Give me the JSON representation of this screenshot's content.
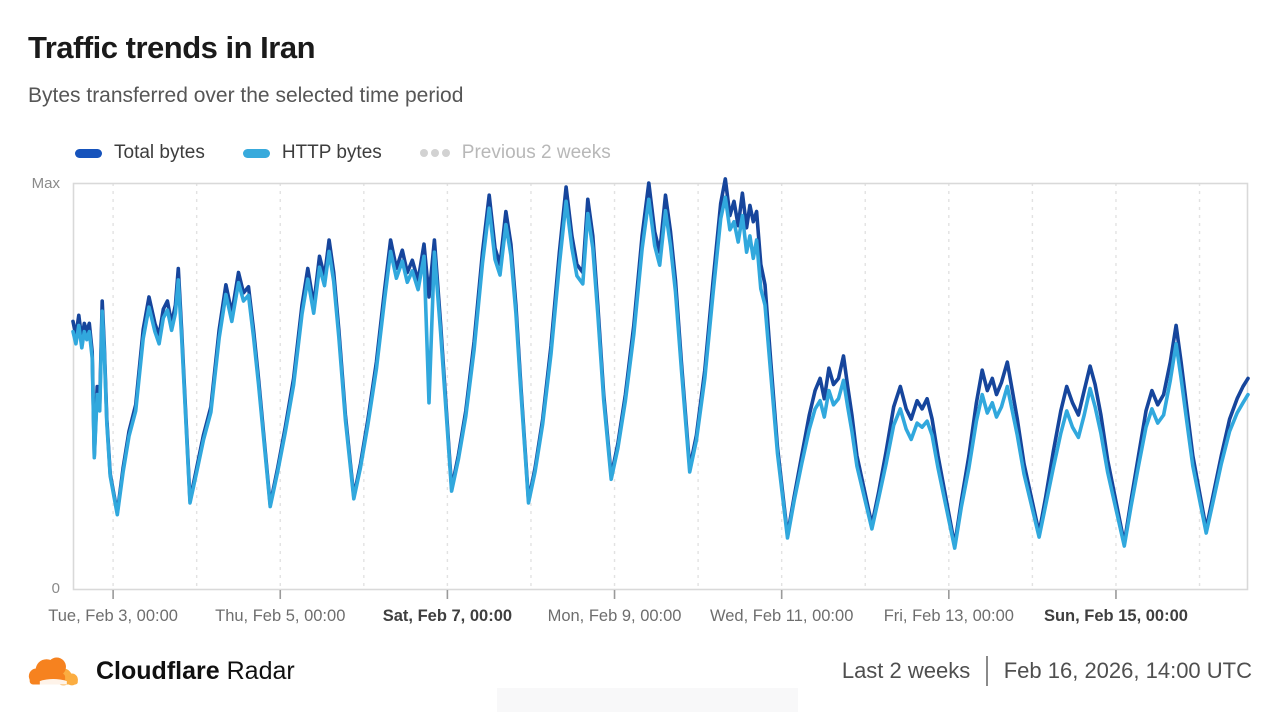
{
  "header": {
    "title": "Traffic trends in Iran",
    "subtitle": "Bytes transferred over the selected time period"
  },
  "legend": [
    {
      "label": "Total bytes",
      "color": "#1653bc",
      "style": "solid",
      "disabled": false
    },
    {
      "label": "HTTP bytes",
      "color": "#38aadc",
      "style": "solid",
      "disabled": false
    },
    {
      "label": "Previous 2 weeks",
      "color": "#d2d2d2",
      "style": "dotted",
      "disabled": true
    }
  ],
  "chart": {
    "y_max_label": "Max",
    "y_min_label": "0",
    "x_ticks": [
      {
        "label": "Tue, Feb 3, 00:00",
        "t": 1,
        "bold": false
      },
      {
        "label": "Thu, Feb 5, 00:00",
        "t": 3,
        "bold": false
      },
      {
        "label": "Sat, Feb 7, 00:00",
        "t": 5,
        "bold": true
      },
      {
        "label": "Mon, Feb 9, 00:00",
        "t": 7,
        "bold": false
      },
      {
        "label": "Wed, Feb 11, 00:00",
        "t": 9,
        "bold": false
      },
      {
        "label": "Fri, Feb 13, 00:00",
        "t": 11,
        "bold": false
      },
      {
        "label": "Sun, Feb 15, 00:00",
        "t": 13,
        "bold": true
      }
    ],
    "gridline_days": [
      1,
      2,
      3,
      4,
      5,
      6,
      7,
      8,
      9,
      10,
      11,
      12,
      13,
      14
    ],
    "border_color": "#d9d9d9",
    "gridline_color": "#e2e2e2",
    "tick_color": "#9a9a9a"
  },
  "footer": {
    "brand_bold": "Cloudflare",
    "brand_regular": "Radar",
    "range_label": "Last 2 weeks",
    "timestamp": "Feb 16, 2026, 14:00 UTC",
    "logo_orange": "#F6821F",
    "logo_light_orange": "#FBAD41"
  },
  "chart_data": {
    "type": "line",
    "title": "Traffic trends in Iran",
    "subtitle": "Bytes transferred over the selected time period",
    "x_unit": "days since Feb 2, 2026 00:00 UTC",
    "x_range": [
      0.52,
      14.58
    ],
    "ylim": [
      0,
      1
    ],
    "y_axis": {
      "min_label": "0",
      "max_label": "Max",
      "note": "values normalized to Max"
    },
    "grid": "vertical-daily-dashed",
    "legend_position": "top",
    "series": [
      {
        "name": "Total bytes",
        "color": "#16459c",
        "points_index": 1
      },
      {
        "name": "HTTP bytes",
        "color": "#31a8dd",
        "points_index": 2
      }
    ],
    "points": [
      [
        0.52,
        0.66,
        0.635
      ],
      [
        0.555,
        0.625,
        0.605
      ],
      [
        0.59,
        0.675,
        0.65
      ],
      [
        0.625,
        0.615,
        0.595
      ],
      [
        0.655,
        0.655,
        0.635
      ],
      [
        0.685,
        0.635,
        0.615
      ],
      [
        0.715,
        0.655,
        0.635
      ],
      [
        0.75,
        0.585,
        0.57
      ],
      [
        0.775,
        0.33,
        0.325
      ],
      [
        0.81,
        0.5,
        0.48
      ],
      [
        0.84,
        0.455,
        0.44
      ],
      [
        0.87,
        0.71,
        0.685
      ],
      [
        0.895,
        0.6,
        0.585
      ],
      [
        0.925,
        0.42,
        0.41
      ],
      [
        0.965,
        0.285,
        0.28
      ],
      [
        1.05,
        0.19,
        0.185
      ],
      [
        1.12,
        0.3,
        0.29
      ],
      [
        1.19,
        0.39,
        0.378
      ],
      [
        1.27,
        0.455,
        0.44
      ],
      [
        1.36,
        0.64,
        0.618
      ],
      [
        1.43,
        0.72,
        0.695
      ],
      [
        1.5,
        0.655,
        0.635
      ],
      [
        1.55,
        0.625,
        0.605
      ],
      [
        1.6,
        0.69,
        0.668
      ],
      [
        1.65,
        0.71,
        0.688
      ],
      [
        1.7,
        0.655,
        0.638
      ],
      [
        1.745,
        0.7,
        0.68
      ],
      [
        1.78,
        0.79,
        0.762
      ],
      [
        1.82,
        0.64,
        0.622
      ],
      [
        1.92,
        0.22,
        0.214
      ],
      [
        2.0,
        0.3,
        0.29
      ],
      [
        2.08,
        0.38,
        0.368
      ],
      [
        2.17,
        0.45,
        0.437
      ],
      [
        2.27,
        0.64,
        0.62
      ],
      [
        2.35,
        0.75,
        0.726
      ],
      [
        2.42,
        0.68,
        0.66
      ],
      [
        2.5,
        0.78,
        0.755
      ],
      [
        2.56,
        0.73,
        0.71
      ],
      [
        2.62,
        0.745,
        0.724
      ],
      [
        2.68,
        0.64,
        0.622
      ],
      [
        2.74,
        0.52,
        0.506
      ],
      [
        2.88,
        0.21,
        0.205
      ],
      [
        2.97,
        0.3,
        0.291
      ],
      [
        3.06,
        0.4,
        0.388
      ],
      [
        3.16,
        0.52,
        0.504
      ],
      [
        3.26,
        0.7,
        0.678
      ],
      [
        3.33,
        0.79,
        0.764
      ],
      [
        3.4,
        0.7,
        0.68
      ],
      [
        3.47,
        0.82,
        0.793
      ],
      [
        3.53,
        0.77,
        0.748
      ],
      [
        3.585,
        0.86,
        0.832
      ],
      [
        3.64,
        0.78,
        0.758
      ],
      [
        3.7,
        0.64,
        0.622
      ],
      [
        3.78,
        0.43,
        0.418
      ],
      [
        3.88,
        0.23,
        0.224
      ],
      [
        3.96,
        0.31,
        0.301
      ],
      [
        4.05,
        0.42,
        0.408
      ],
      [
        4.15,
        0.56,
        0.543
      ],
      [
        4.25,
        0.74,
        0.716
      ],
      [
        4.32,
        0.86,
        0.832
      ],
      [
        4.39,
        0.79,
        0.766
      ],
      [
        4.46,
        0.835,
        0.808
      ],
      [
        4.52,
        0.78,
        0.756
      ],
      [
        4.58,
        0.81,
        0.784
      ],
      [
        4.65,
        0.76,
        0.738
      ],
      [
        4.72,
        0.85,
        0.82
      ],
      [
        4.78,
        0.72,
        0.46
      ],
      [
        4.845,
        0.86,
        0.83
      ],
      [
        4.92,
        0.65,
        0.63
      ],
      [
        5.05,
        0.25,
        0.243
      ],
      [
        5.13,
        0.33,
        0.32
      ],
      [
        5.22,
        0.44,
        0.427
      ],
      [
        5.32,
        0.61,
        0.59
      ],
      [
        5.42,
        0.83,
        0.803
      ],
      [
        5.5,
        0.97,
        0.938
      ],
      [
        5.57,
        0.84,
        0.812
      ],
      [
        5.63,
        0.8,
        0.774
      ],
      [
        5.7,
        0.93,
        0.898
      ],
      [
        5.76,
        0.85,
        0.822
      ],
      [
        5.82,
        0.7,
        0.68
      ],
      [
        5.88,
        0.5,
        0.487
      ],
      [
        5.97,
        0.22,
        0.214
      ],
      [
        6.05,
        0.3,
        0.291
      ],
      [
        6.14,
        0.42,
        0.408
      ],
      [
        6.24,
        0.6,
        0.58
      ],
      [
        6.34,
        0.83,
        0.8
      ],
      [
        6.42,
        0.99,
        0.955
      ],
      [
        6.49,
        0.87,
        0.84
      ],
      [
        6.55,
        0.8,
        0.772
      ],
      [
        6.62,
        0.78,
        0.752
      ],
      [
        6.68,
        0.96,
        0.925
      ],
      [
        6.74,
        0.87,
        0.84
      ],
      [
        6.8,
        0.7,
        0.678
      ],
      [
        6.87,
        0.48,
        0.466
      ],
      [
        6.96,
        0.28,
        0.272
      ],
      [
        7.04,
        0.36,
        0.349
      ],
      [
        7.13,
        0.48,
        0.465
      ],
      [
        7.23,
        0.65,
        0.628
      ],
      [
        7.33,
        0.87,
        0.838
      ],
      [
        7.41,
        1.0,
        0.96
      ],
      [
        7.48,
        0.88,
        0.846
      ],
      [
        7.54,
        0.83,
        0.798
      ],
      [
        7.61,
        0.97,
        0.932
      ],
      [
        7.67,
        0.88,
        0.846
      ],
      [
        7.73,
        0.76,
        0.732
      ],
      [
        7.8,
        0.56,
        0.542
      ],
      [
        7.9,
        0.3,
        0.29
      ],
      [
        7.98,
        0.38,
        0.368
      ],
      [
        8.08,
        0.54,
        0.52
      ],
      [
        8.18,
        0.76,
        0.73
      ],
      [
        8.27,
        0.95,
        0.912
      ],
      [
        8.325,
        1.01,
        0.965
      ],
      [
        8.38,
        0.92,
        0.885
      ],
      [
        8.43,
        0.955,
        0.905
      ],
      [
        8.48,
        0.895,
        0.855
      ],
      [
        8.53,
        0.975,
        0.92
      ],
      [
        8.58,
        0.89,
        0.83
      ],
      [
        8.62,
        0.945,
        0.87
      ],
      [
        8.66,
        0.905,
        0.815
      ],
      [
        8.7,
        0.93,
        0.86
      ],
      [
        8.75,
        0.8,
        0.74
      ],
      [
        8.8,
        0.75,
        0.7
      ],
      [
        8.87,
        0.56,
        0.53
      ],
      [
        8.95,
        0.35,
        0.335
      ],
      [
        9.07,
        0.135,
        0.128
      ],
      [
        9.15,
        0.23,
        0.22
      ],
      [
        9.24,
        0.33,
        0.31
      ],
      [
        9.33,
        0.43,
        0.395
      ],
      [
        9.4,
        0.49,
        0.445
      ],
      [
        9.46,
        0.52,
        0.465
      ],
      [
        9.51,
        0.47,
        0.425
      ],
      [
        9.565,
        0.545,
        0.49
      ],
      [
        9.62,
        0.505,
        0.455
      ],
      [
        9.68,
        0.52,
        0.47
      ],
      [
        9.74,
        0.575,
        0.515
      ],
      [
        9.79,
        0.5,
        0.45
      ],
      [
        9.84,
        0.43,
        0.39
      ],
      [
        9.9,
        0.33,
        0.305
      ],
      [
        10.08,
        0.16,
        0.15
      ],
      [
        10.16,
        0.24,
        0.225
      ],
      [
        10.25,
        0.34,
        0.31
      ],
      [
        10.34,
        0.45,
        0.405
      ],
      [
        10.42,
        0.5,
        0.445
      ],
      [
        10.49,
        0.445,
        0.395
      ],
      [
        10.55,
        0.42,
        0.37
      ],
      [
        10.62,
        0.465,
        0.41
      ],
      [
        10.68,
        0.445,
        0.4
      ],
      [
        10.74,
        0.47,
        0.415
      ],
      [
        10.8,
        0.42,
        0.38
      ],
      [
        10.87,
        0.33,
        0.3
      ],
      [
        11.07,
        0.11,
        0.103
      ],
      [
        11.15,
        0.22,
        0.205
      ],
      [
        11.24,
        0.33,
        0.3
      ],
      [
        11.33,
        0.46,
        0.415
      ],
      [
        11.4,
        0.54,
        0.48
      ],
      [
        11.46,
        0.49,
        0.435
      ],
      [
        11.52,
        0.52,
        0.46
      ],
      [
        11.57,
        0.48,
        0.425
      ],
      [
        11.63,
        0.51,
        0.45
      ],
      [
        11.7,
        0.56,
        0.5
      ],
      [
        11.76,
        0.49,
        0.44
      ],
      [
        11.82,
        0.42,
        0.38
      ],
      [
        11.9,
        0.31,
        0.285
      ],
      [
        12.08,
        0.14,
        0.13
      ],
      [
        12.16,
        0.23,
        0.21
      ],
      [
        12.25,
        0.34,
        0.3
      ],
      [
        12.34,
        0.44,
        0.385
      ],
      [
        12.41,
        0.5,
        0.44
      ],
      [
        12.48,
        0.46,
        0.4
      ],
      [
        12.55,
        0.43,
        0.375
      ],
      [
        12.62,
        0.49,
        0.43
      ],
      [
        12.69,
        0.55,
        0.495
      ],
      [
        12.75,
        0.505,
        0.45
      ],
      [
        12.82,
        0.43,
        0.385
      ],
      [
        12.9,
        0.32,
        0.29
      ],
      [
        13.1,
        0.115,
        0.108
      ],
      [
        13.18,
        0.22,
        0.205
      ],
      [
        13.27,
        0.33,
        0.305
      ],
      [
        13.36,
        0.44,
        0.4
      ],
      [
        13.43,
        0.49,
        0.445
      ],
      [
        13.5,
        0.455,
        0.41
      ],
      [
        13.57,
        0.48,
        0.43
      ],
      [
        13.65,
        0.56,
        0.515
      ],
      [
        13.72,
        0.65,
        0.605
      ],
      [
        13.78,
        0.56,
        0.52
      ],
      [
        13.84,
        0.46,
        0.425
      ],
      [
        13.92,
        0.33,
        0.305
      ],
      [
        14.08,
        0.15,
        0.14
      ],
      [
        14.16,
        0.23,
        0.215
      ],
      [
        14.26,
        0.33,
        0.31
      ],
      [
        14.36,
        0.42,
        0.39
      ],
      [
        14.45,
        0.47,
        0.435
      ],
      [
        14.52,
        0.5,
        0.46
      ],
      [
        14.58,
        0.52,
        0.48
      ]
    ]
  }
}
